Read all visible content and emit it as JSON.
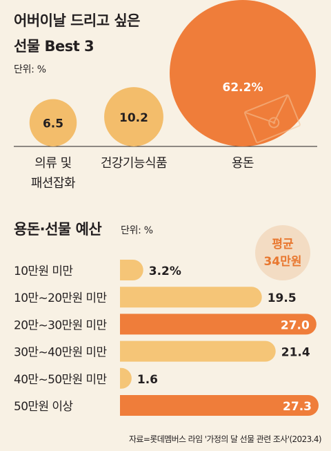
{
  "chart_data": [
    {
      "type": "bubble",
      "title_line1": "어버이날 드리고 싶은",
      "title_line2": "선물 Best 3",
      "unit": "단위: %",
      "categories": [
        {
          "label": [
            "의류 및",
            "패션잡화"
          ],
          "value": 6.5,
          "value_text": "6.5"
        },
        {
          "label": [
            "건강기능식품"
          ],
          "value": 10.2,
          "value_text": "10.2"
        },
        {
          "label": [
            "용돈"
          ],
          "value": 62.2,
          "value_text": "62.2%"
        }
      ],
      "colors": {
        "small": "#f3bd6b",
        "large": "#ef7d3a"
      }
    },
    {
      "type": "bar",
      "title": "용돈·선물 예산",
      "unit": "단위: %",
      "average_label": "평균",
      "average_value": "34만원",
      "categories": [
        "10만원 미만",
        "10만~20만원 미만",
        "20만~30만원 미만",
        "30만~40만원 미만",
        "40만~50만원 미만",
        "50만원 이상"
      ],
      "values": [
        3.2,
        19.5,
        27.0,
        21.4,
        1.6,
        27.3
      ],
      "value_labels": [
        "3.2%",
        "19.5",
        "27.0",
        "21.4",
        "1.6",
        "27.3"
      ],
      "highlighted": [
        false,
        false,
        true,
        false,
        false,
        true
      ],
      "colors": {
        "normal": "#f5c577",
        "highlight": "#ef7d3a"
      }
    }
  ],
  "source": "자료=롯데멤버스 라임 '가정의 달 선물 관련 조사'(2023.4)"
}
